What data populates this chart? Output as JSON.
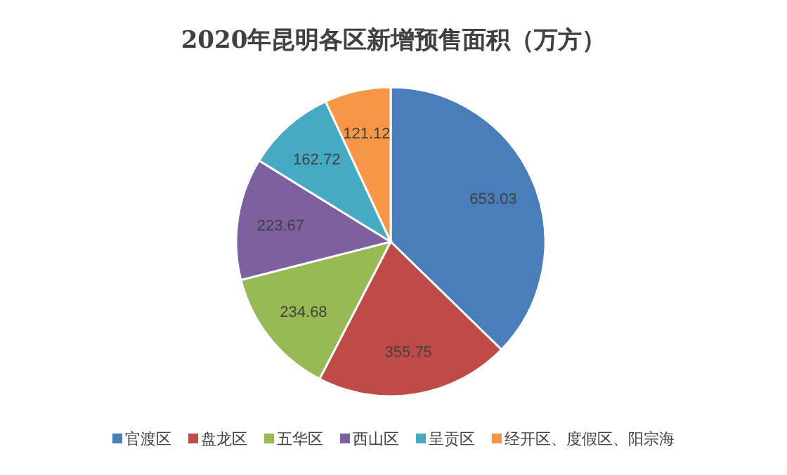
{
  "chart_data": {
    "type": "pie",
    "title": "2020年昆明各区新增预售面积（万方）",
    "categories": [
      "官渡区",
      "盘龙区",
      "五华区",
      "西山区",
      "呈贡区",
      "经开区、度假区、阳宗海"
    ],
    "values": [
      653.03,
      355.75,
      234.68,
      223.67,
      162.72,
      121.12
    ],
    "colors": [
      "#4a7ebb",
      "#be4b48",
      "#98b954",
      "#7d60a0",
      "#46aac5",
      "#f79646"
    ],
    "data_labels": true,
    "legend": "bottom"
  }
}
